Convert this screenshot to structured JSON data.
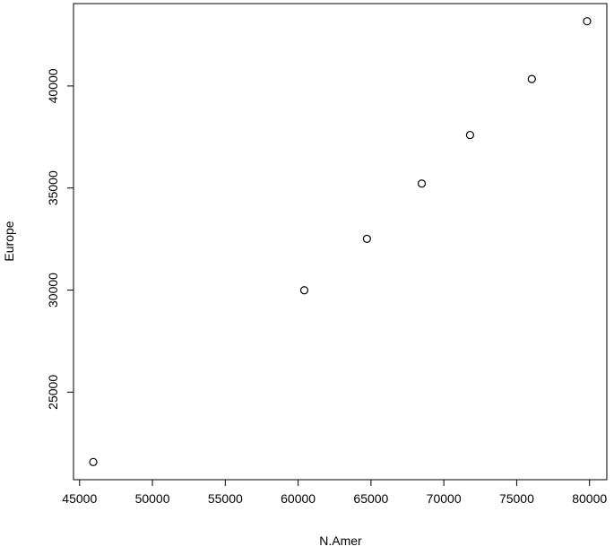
{
  "chart_data": {
    "type": "scatter",
    "x_label": "N.Amer",
    "y_label": "Europe",
    "x": [
      45939,
      60423,
      64721,
      68484,
      71799,
      76036,
      79831
    ],
    "values": [
      21574,
      29990,
      32510,
      35218,
      37598,
      40341,
      43173
    ],
    "color": "#000000",
    "xlim": [
      44583,
      81187
    ],
    "ylim": [
      20710,
      44037
    ],
    "xticks": [
      45000,
      50000,
      55000,
      60000,
      65000,
      70000,
      75000,
      80000
    ],
    "yticks": [
      25000,
      30000,
      35000,
      40000
    ],
    "grid": false
  }
}
